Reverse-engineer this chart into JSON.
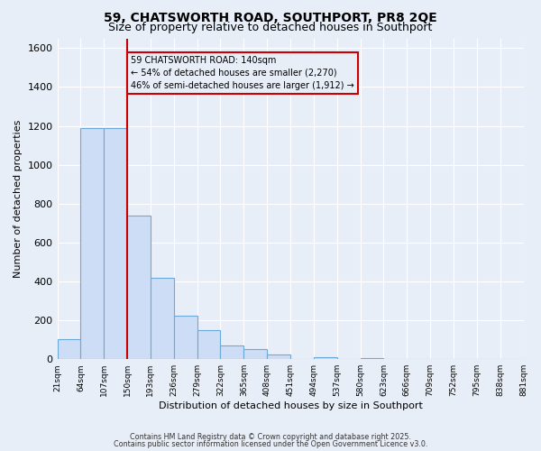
{
  "title": "59, CHATSWORTH ROAD, SOUTHPORT, PR8 2QE",
  "subtitle": "Size of property relative to detached houses in Southport",
  "xlabel": "Distribution of detached houses by size in Southport",
  "ylabel": "Number of detached properties",
  "bar_values": [
    105,
    1190,
    1190,
    740,
    420,
    225,
    150,
    70,
    50,
    25,
    0,
    10,
    0,
    5,
    0,
    0,
    0,
    0,
    0,
    0
  ],
  "bin_labels": [
    "21sqm",
    "64sqm",
    "107sqm",
    "150sqm",
    "193sqm",
    "236sqm",
    "279sqm",
    "322sqm",
    "365sqm",
    "408sqm",
    "451sqm",
    "494sqm",
    "537sqm",
    "580sqm",
    "623sqm",
    "666sqm",
    "709sqm",
    "752sqm",
    "795sqm",
    "838sqm",
    "881sqm"
  ],
  "bar_color": "#ccddf5",
  "bar_edge_color": "#6baad8",
  "vline_x": 3,
  "vline_color": "#cc0000",
  "annotation_line1": "59 CHATSWORTH ROAD: 140sqm",
  "annotation_line2": "← 54% of detached houses are smaller (2,270)",
  "annotation_line3": "46% of semi-detached houses are larger (1,912) →",
  "ylim": [
    0,
    1650
  ],
  "yticks": [
    0,
    200,
    400,
    600,
    800,
    1000,
    1200,
    1400,
    1600
  ],
  "bg_color": "#e8eef8",
  "grid_color": "#ffffff",
  "footnote1": "Contains HM Land Registry data © Crown copyright and database right 2025.",
  "footnote2": "Contains public sector information licensed under the Open Government Licence v3.0."
}
